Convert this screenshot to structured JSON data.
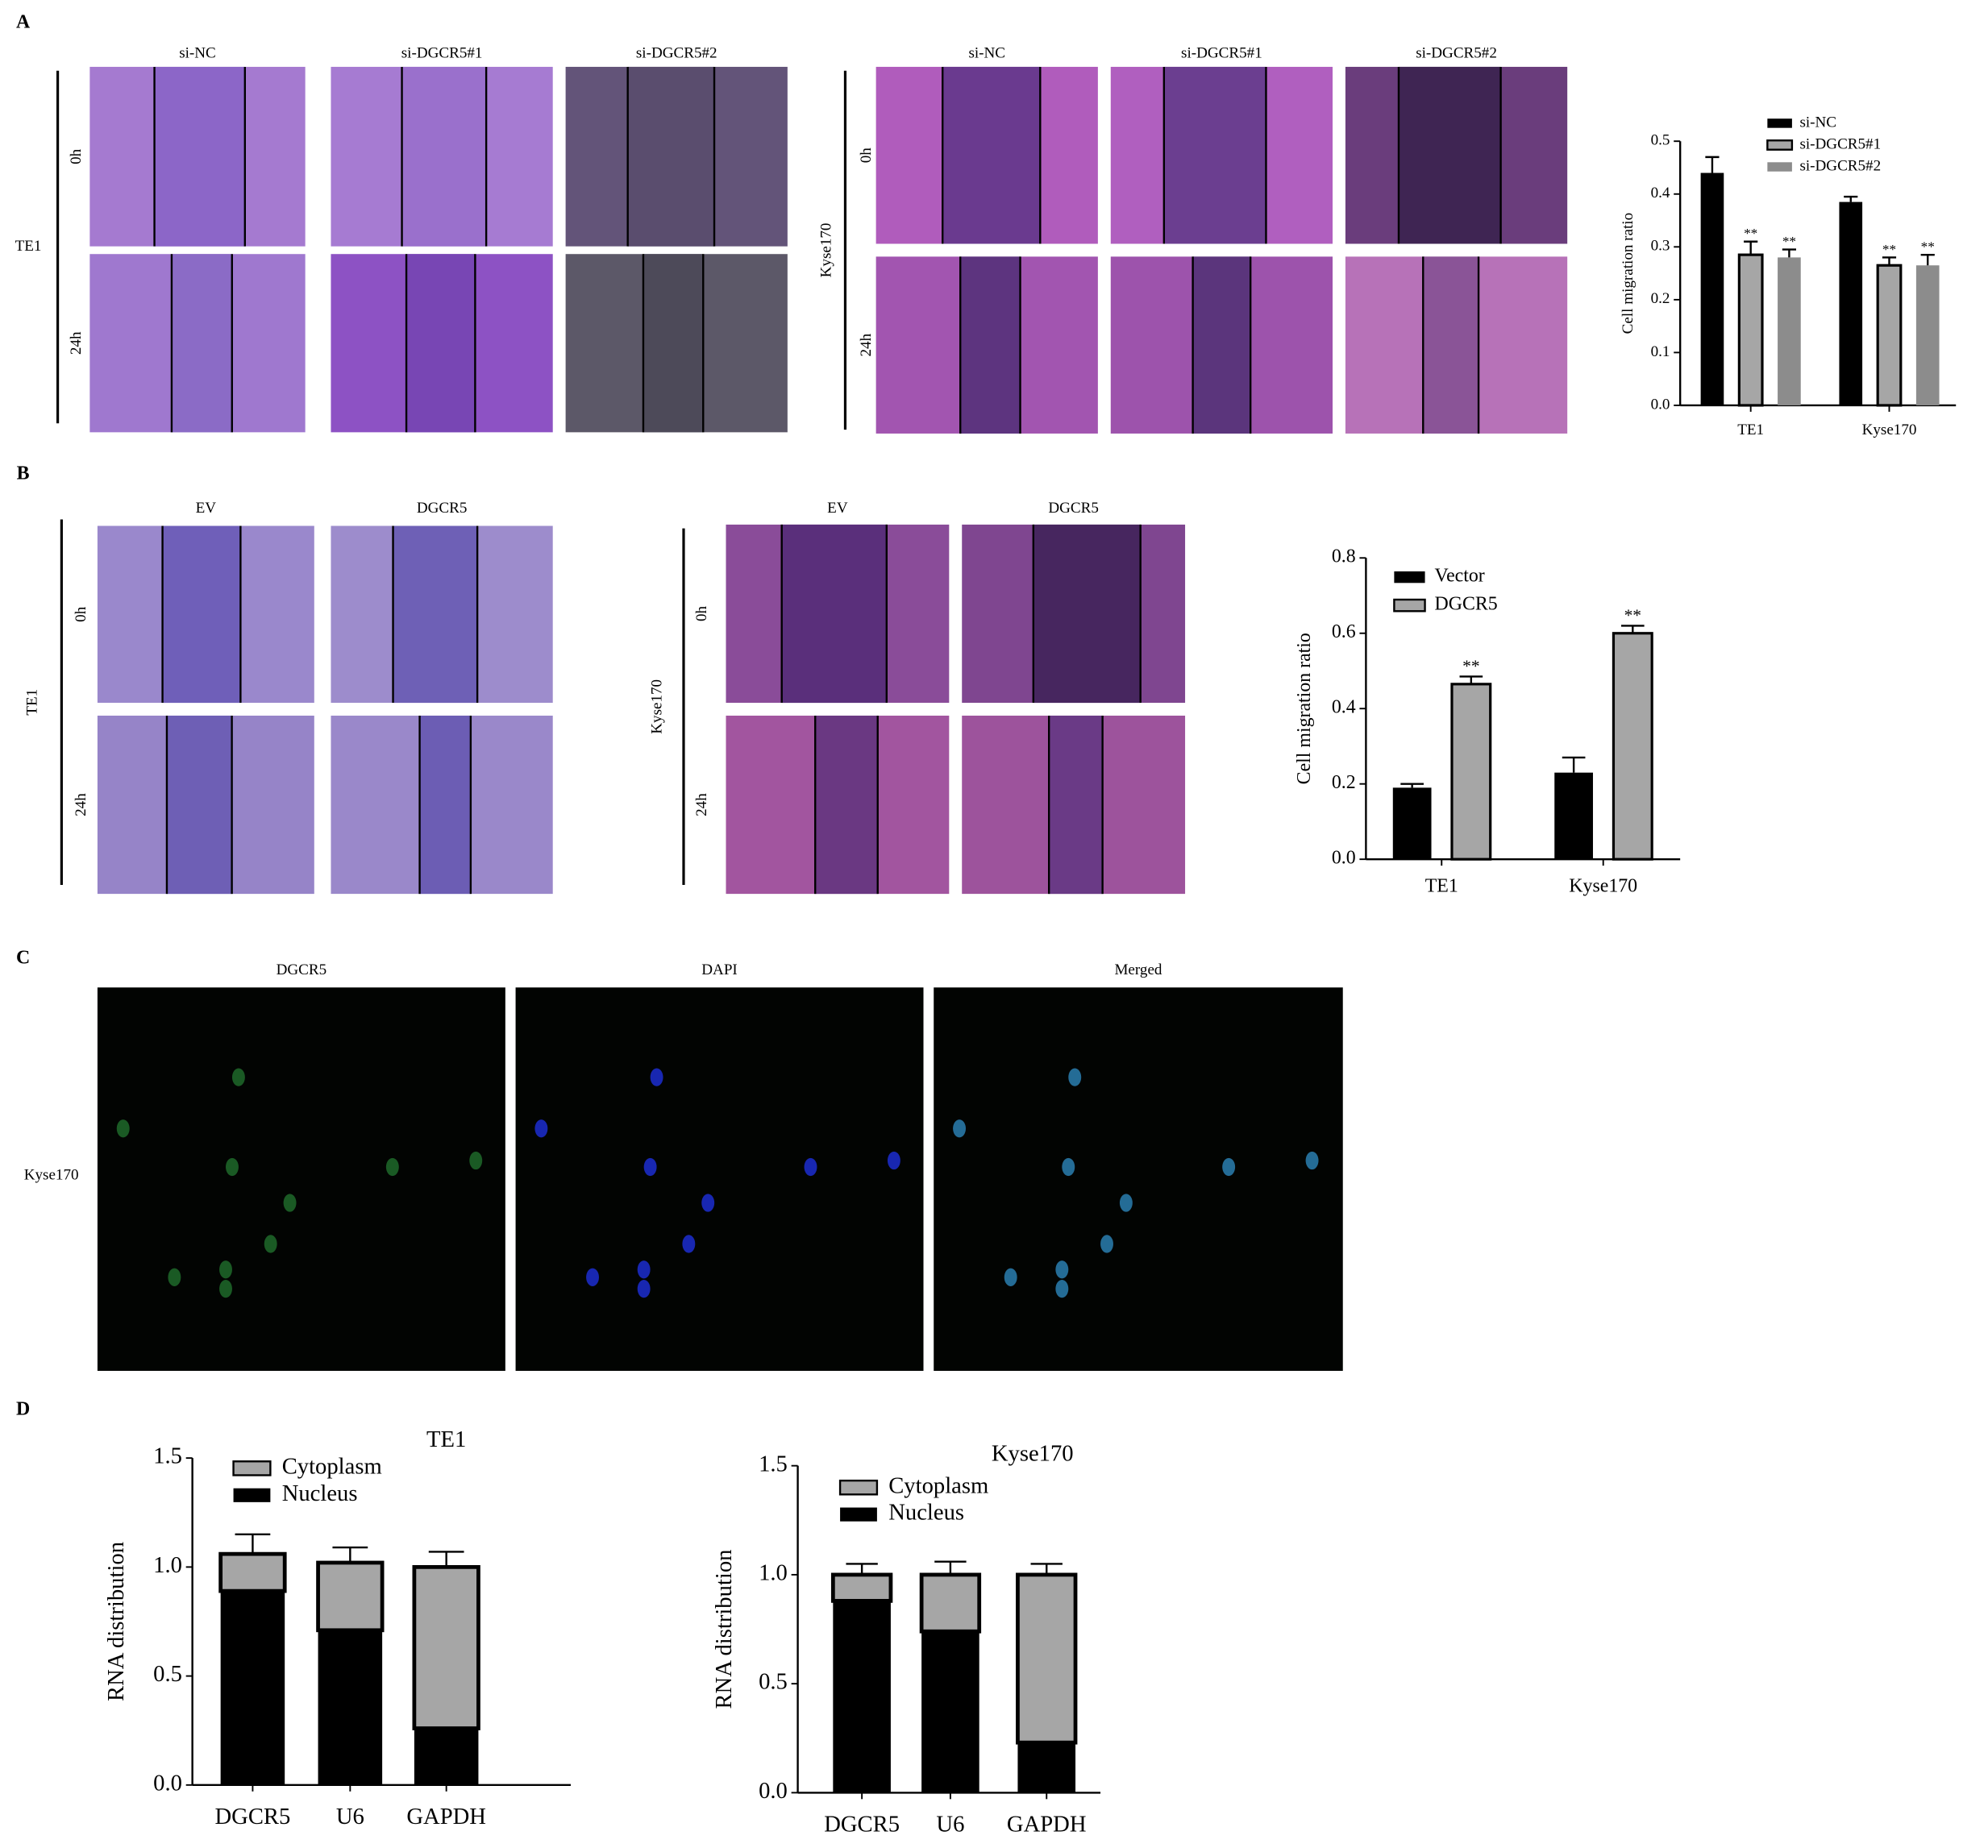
{
  "figure": {
    "panels": [
      "A",
      "B",
      "C",
      "D"
    ],
    "a_left": {
      "columns": [
        "si-NC",
        "si-DGCR5#1",
        "si-DGCR5#2"
      ],
      "rows": [
        "0h",
        "24h"
      ],
      "cell_line": "TE1"
    },
    "a_right": {
      "columns": [
        "si-NC",
        "si-DGCR5#1",
        "si-DGCR5#2"
      ],
      "rows": [
        "0h",
        "24h"
      ],
      "cell_line": "Kyse170"
    },
    "b_left": {
      "columns": [
        "EV",
        "DGCR5"
      ],
      "rows": [
        "0h",
        "24h"
      ],
      "cell_line": "TE1"
    },
    "b_right": {
      "columns": [
        "EV",
        "DGCR5"
      ],
      "rows": [
        "0h",
        "24h"
      ],
      "cell_line": "Kyse170"
    },
    "c": {
      "columns": [
        "DGCR5",
        "DAPI",
        "Merged"
      ],
      "cell_line": "Kyse170"
    }
  },
  "chart_data": [
    {
      "type": "bar",
      "ylabel": "Cell migration ratio",
      "categories": [
        "TE1",
        "Kyse170"
      ],
      "series": [
        {
          "name": "si-NC",
          "color": "#000000",
          "values": [
            0.44,
            0.385
          ],
          "errors": [
            0.03,
            0.01
          ]
        },
        {
          "name": "si-DGCR5#1",
          "color": "#a6a6a6",
          "edgecolor": "#000000",
          "values": [
            0.285,
            0.265
          ],
          "errors": [
            0.025,
            0.015
          ],
          "significance": [
            "**",
            "**"
          ]
        },
        {
          "name": "si-DGCR5#2",
          "color": "#8c8c8c",
          "values": [
            0.28,
            0.265
          ],
          "errors": [
            0.015,
            0.02
          ],
          "significance": [
            "**",
            "**"
          ]
        }
      ],
      "ylim": [
        0,
        0.5
      ],
      "yticks": [
        {
          "value": 0,
          "label": "0.0"
        },
        0.1,
        0.2,
        0.3,
        0.4,
        0.5
      ]
    },
    {
      "type": "bar",
      "ylabel": "Cell migration ratio",
      "categories": [
        "TE1",
        "Kyse170"
      ],
      "series": [
        {
          "name": "Vector",
          "color": "#000000",
          "values": [
            0.19,
            0.23
          ],
          "errors": [
            0.01,
            0.04
          ]
        },
        {
          "name": "DGCR5",
          "color": "#a6a6a6",
          "edgecolor": "#000000",
          "values": [
            0.465,
            0.6
          ],
          "errors": [
            0.02,
            0.02
          ],
          "significance": [
            "**",
            "**"
          ]
        }
      ],
      "ylim": [
        0,
        0.8
      ],
      "yticks": [
        {
          "value": 0,
          "label": "0.0"
        },
        0.2,
        0.4,
        0.6,
        0.8
      ]
    },
    {
      "type": "stacked_bar",
      "title": "TE1",
      "ylabel": "RNA distribution",
      "categories": [
        "DGCR5",
        "U6",
        "GAPDH"
      ],
      "series": [
        {
          "name": "Cytoplasm",
          "color": "#a6a6a6",
          "edgecolor": "#000000",
          "values": [
            0.17,
            0.31,
            0.74
          ],
          "errors": [
            0.09,
            0.07,
            0.07
          ]
        },
        {
          "name": "Nucleus",
          "color": "#000000",
          "values": [
            0.89,
            0.71,
            0.26
          ],
          "errors": [
            0.02,
            0.07,
            0.07
          ]
        }
      ],
      "ylim": [
        0,
        1.5
      ],
      "yticks": [
        {
          "value": 0,
          "label": "0.0"
        },
        0.5,
        {
          "value": 1,
          "label": "1.0"
        },
        1.5
      ]
    },
    {
      "type": "stacked_bar",
      "title": "Kyse170",
      "ylabel": "RNA distribution",
      "categories": [
        "DGCR5",
        "U6",
        "GAPDH"
      ],
      "series": [
        {
          "name": "Cytoplasm",
          "color": "#a6a6a6",
          "edgecolor": "#000000",
          "values": [
            0.12,
            0.26,
            0.77
          ],
          "errors": [
            0.05,
            0.06,
            0.05
          ]
        },
        {
          "name": "Nucleus",
          "color": "#000000",
          "values": [
            0.88,
            0.74,
            0.23
          ],
          "errors": [
            0.04,
            0.05,
            0.05
          ]
        }
      ],
      "ylim": [
        0,
        1.5
      ],
      "yticks": [
        {
          "value": 0,
          "label": "0.0"
        },
        0.5,
        {
          "value": 1,
          "label": "1.0"
        },
        1.5
      ]
    }
  ]
}
